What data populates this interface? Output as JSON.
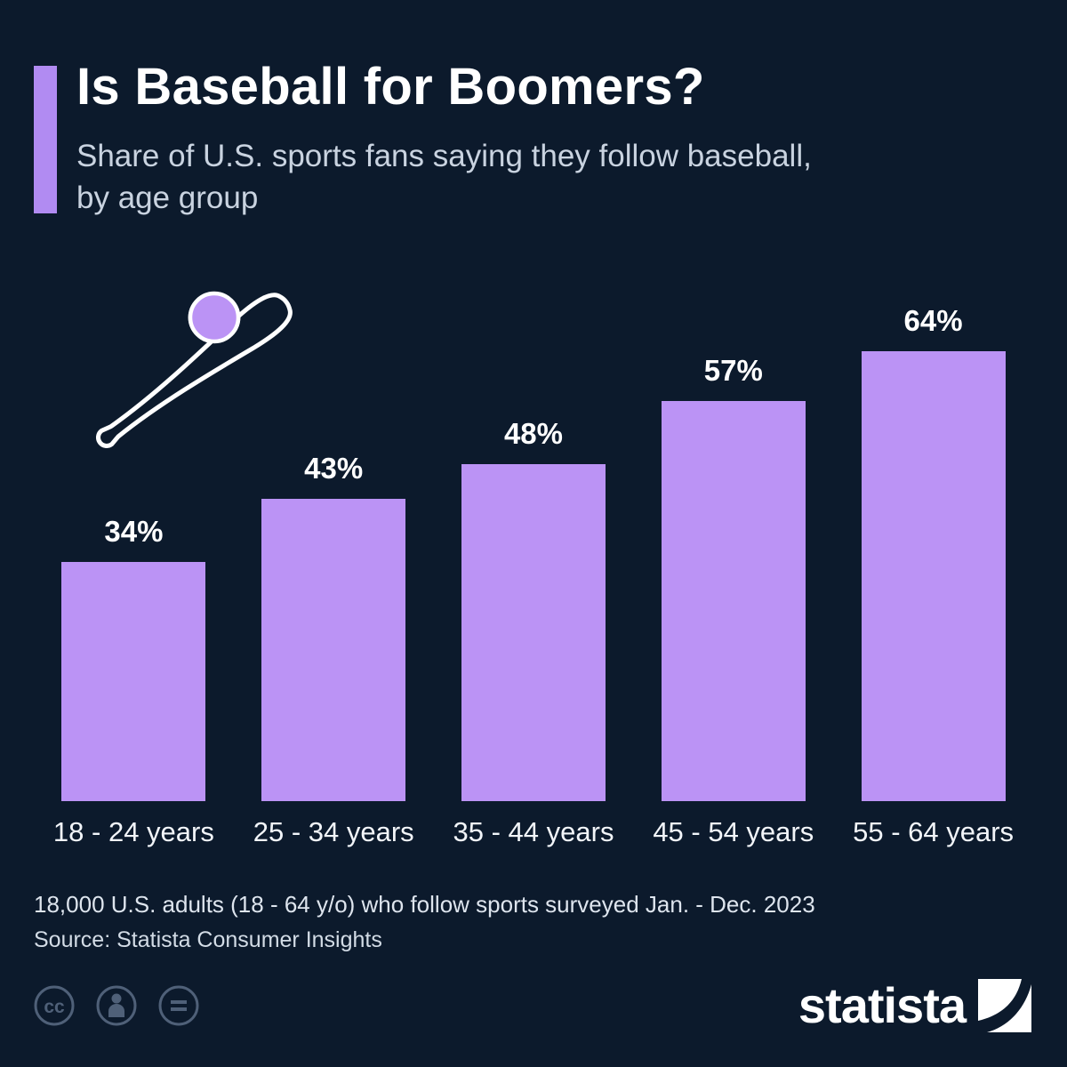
{
  "page": {
    "background": "#0c1a2c"
  },
  "header": {
    "title": "Is Baseball for Boomers?",
    "subtitle_line1": "Share of U.S. sports fans saying they follow baseball,",
    "subtitle_line2": "by age group",
    "accent_color": "#b18bf2"
  },
  "chart_data": {
    "type": "bar",
    "categories": [
      "18 - 24 years",
      "25 - 34 years",
      "35 - 44 years",
      "45 - 54 years",
      "55 - 64 years"
    ],
    "values": [
      34,
      43,
      48,
      57,
      64
    ],
    "value_labels": [
      "34%",
      "43%",
      "48%",
      "57%",
      "64%"
    ],
    "title": "Is Baseball for Boomers?",
    "xlabel": "",
    "ylabel": "",
    "ylim": [
      0,
      70
    ],
    "grid": false,
    "legend": false,
    "bar_color": "#bb93f5"
  },
  "icons": {
    "decoration": "baseball-bat-and-ball",
    "ball_color": "#bb93f5",
    "license_badges": [
      "cc",
      "attribution-person",
      "no-derivatives-equals"
    ]
  },
  "footer": {
    "note": "18,000 U.S. adults (18 - 64 y/o) who follow sports surveyed Jan. - Dec. 2023",
    "source": "Source: Statista Consumer Insights",
    "brand": "statista"
  }
}
